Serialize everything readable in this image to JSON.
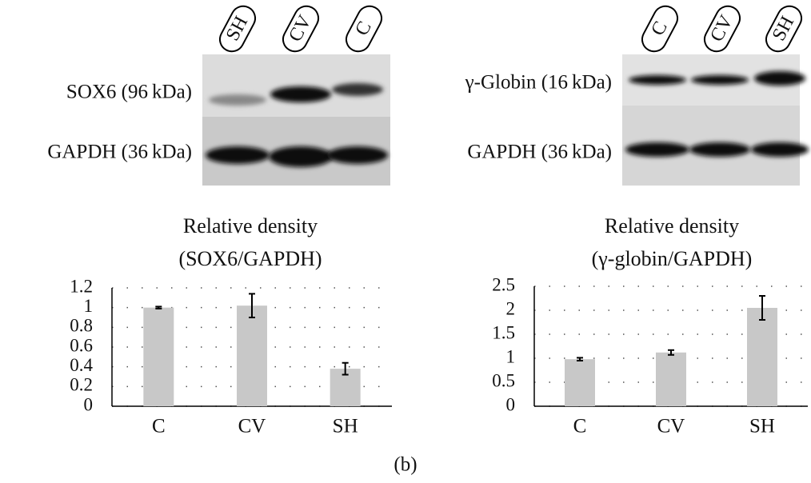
{
  "blots": [
    {
      "lanes": [
        "SH",
        "CV",
        "C"
      ],
      "rows": [
        "SOX6 (96 kDa)",
        "GAPDH (36 kDa)"
      ]
    },
    {
      "lanes": [
        "C",
        "CV",
        "SH"
      ],
      "rows": [
        "γ-Globin (16 kDa)",
        "GAPDH (36 kDa)"
      ]
    }
  ],
  "chart_data": [
    {
      "type": "bar",
      "title": "Relative density",
      "subtitle": "(SOX6/GAPDH)",
      "categories": [
        "C",
        "CV",
        "SH"
      ],
      "values": [
        1.0,
        1.02,
        0.38
      ],
      "errors": [
        0.01,
        0.12,
        0.06
      ],
      "color": "#c8c8c8",
      "ylim": [
        0,
        1.2
      ],
      "yticks": [
        0,
        0.2,
        0.4,
        0.6,
        0.8,
        1,
        1.2
      ],
      "grid": true
    },
    {
      "type": "bar",
      "title": "Relative density",
      "subtitle": "(γ-globin/GAPDH)",
      "categories": [
        "C",
        "CV",
        "SH"
      ],
      "values": [
        0.98,
        1.12,
        2.05
      ],
      "errors": [
        0.03,
        0.05,
        0.25
      ],
      "color": "#c8c8c8",
      "ylim": [
        0,
        2.5
      ],
      "yticks": [
        0,
        0.5,
        1,
        1.5,
        2,
        2.5
      ],
      "grid": true
    }
  ],
  "caption": "(b)"
}
